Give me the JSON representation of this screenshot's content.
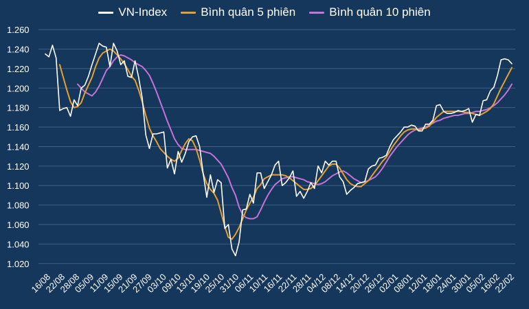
{
  "chart_data": {
    "type": "line",
    "title": "",
    "xlabel": "",
    "ylabel": "",
    "ylim": [
      1010,
      1265
    ],
    "yticks": [
      1020,
      1040,
      1060,
      1080,
      1100,
      1120,
      1140,
      1160,
      1180,
      1200,
      1220,
      1240,
      1260
    ],
    "ytick_labels": [
      "1.020",
      "1.040",
      "1.060",
      "1.080",
      "1.100",
      "1.120",
      "1.140",
      "1.160",
      "1.180",
      "1.200",
      "1.220",
      "1.240",
      "1.260"
    ],
    "x_tick_labels": [
      "16/08",
      "22/08",
      "28/08",
      "05/09",
      "11/09",
      "15/09",
      "21/09",
      "27/09",
      "03/10",
      "09/10",
      "13/10",
      "19/10",
      "25/10",
      "31/10",
      "06/11",
      "10/11",
      "16/11",
      "22/11",
      "28/11",
      "04/12",
      "08/12",
      "14/12",
      "20/12",
      "26/12",
      "02/01",
      "08/01",
      "12/01",
      "18/01",
      "24/01",
      "30/01",
      "05/02",
      "16/02",
      "22/02"
    ],
    "grid": {
      "horizontal": true,
      "vertical": false
    },
    "legend_position": "top-center",
    "series": [
      {
        "name": "VN-Index",
        "color": "#ffffff",
        "values": [
          1235,
          1232,
          1244,
          1231,
          1177,
          1179,
          1180,
          1171,
          1188,
          1182,
          1200,
          1203,
          1212,
          1224,
          1235,
          1246,
          1243,
          1242,
          1222,
          1246,
          1238,
          1224,
          1228,
          1212,
          1211,
          1228,
          1211,
          1190,
          1152,
          1138,
          1153,
          1153,
          1154,
          1155,
          1118,
          1127,
          1112,
          1135,
          1124,
          1133,
          1145,
          1150,
          1151,
          1140,
          1112,
          1088,
          1111,
          1093,
          1106,
          1103,
          1056,
          1060,
          1035,
          1028,
          1042,
          1075,
          1076,
          1091,
          1082,
          1113,
          1113,
          1097,
          1104,
          1111,
          1121,
          1125,
          1100,
          1103,
          1108,
          1115,
          1089,
          1094,
          1087,
          1094,
          1103,
          1097,
          1120,
          1113,
          1125,
          1121,
          1125,
          1125,
          1109,
          1104,
          1091,
          1095,
          1098,
          1102,
          1103,
          1104,
          1117,
          1120,
          1121,
          1128,
          1129,
          1131,
          1140,
          1147,
          1151,
          1155,
          1160,
          1160,
          1162,
          1161,
          1156,
          1156,
          1163,
          1163,
          1167,
          1182,
          1183,
          1176,
          1174,
          1174,
          1175,
          1177,
          1176,
          1177,
          1179,
          1165,
          1173,
          1172,
          1187,
          1188,
          1197,
          1201,
          1213,
          1229,
          1230,
          1229,
          1225
        ]
      },
      {
        "name": "Bình quân 5 phiên",
        "color": "#e6a02d",
        "values": [
          null,
          null,
          null,
          null,
          1224,
          1211,
          1198,
          1186,
          1180,
          1181,
          1185,
          1195,
          1203,
          1211,
          1222,
          1231,
          1236,
          1238,
          1240,
          1238,
          1234,
          1230,
          1225,
          1219,
          1212,
          1208,
          1198,
          1186,
          1172,
          1159,
          1151,
          1145,
          1138,
          1134,
          1130,
          1127,
          1125,
          1128,
          1136,
          1143,
          1148,
          1146,
          1138,
          1126,
          1112,
          1102,
          1096,
          1092,
          1085,
          1072,
          1058,
          1047,
          1045,
          1050,
          1057,
          1066,
          1075,
          1082,
          1088,
          1097,
          1101,
          1107,
          1109,
          1111,
          1111,
          1111,
          1111,
          1110,
          1108,
          1105,
          1102,
          1099,
          1096,
          1096,
          1097,
          1100,
          1105,
          1110,
          1115,
          1120,
          1122,
          1122,
          1118,
          1112,
          1106,
          1102,
          1100,
          1099,
          1099,
          1102,
          1105,
          1110,
          1115,
          1120,
          1125,
          1129,
          1135,
          1141,
          1146,
          1151,
          1155,
          1157,
          1158,
          1158,
          1157,
          1158,
          1159,
          1161,
          1165,
          1170,
          1173,
          1176,
          1176,
          1176,
          1176,
          1176,
          1176,
          1175,
          1175,
          1174,
          1173,
          1172,
          1174,
          1176,
          1179,
          1184,
          1192,
          1200,
          1207,
          1214,
          1221
        ]
      },
      {
        "name": "Bình quân 10 phiên",
        "color": "#c772d6",
        "values": [
          null,
          null,
          null,
          null,
          null,
          null,
          null,
          null,
          null,
          1204,
          1200,
          1196,
          1194,
          1192,
          1196,
          1202,
          1210,
          1218,
          1222,
          1228,
          1232,
          1234,
          1233,
          1231,
          1229,
          1226,
          1224,
          1222,
          1218,
          1213,
          1205,
          1196,
          1186,
          1176,
          1166,
          1157,
          1148,
          1142,
          1138,
          1137,
          1137,
          1137,
          1137,
          1136,
          1135,
          1134,
          1133,
          1130,
          1126,
          1122,
          1115,
          1108,
          1098,
          1090,
          1078,
          1070,
          1067,
          1066,
          1066,
          1068,
          1075,
          1083,
          1090,
          1096,
          1101,
          1104,
          1107,
          1108,
          1109,
          1109,
          1108,
          1107,
          1106,
          1104,
          1103,
          1102,
          1101,
          1102,
          1104,
          1107,
          1110,
          1112,
          1114,
          1115,
          1113,
          1110,
          1107,
          1105,
          1103,
          1104,
          1105,
          1107,
          1109,
          1113,
          1118,
          1124,
          1130,
          1135,
          1140,
          1144,
          1148,
          1152,
          1155,
          1157,
          1158,
          1159,
          1160,
          1162,
          1164,
          1166,
          1167,
          1169,
          1170,
          1171,
          1172,
          1172,
          1173,
          1174,
          1174,
          1175,
          1176,
          1176,
          1177,
          1178,
          1180,
          1182,
          1185,
          1189,
          1193,
          1198,
          1204
        ]
      }
    ]
  }
}
